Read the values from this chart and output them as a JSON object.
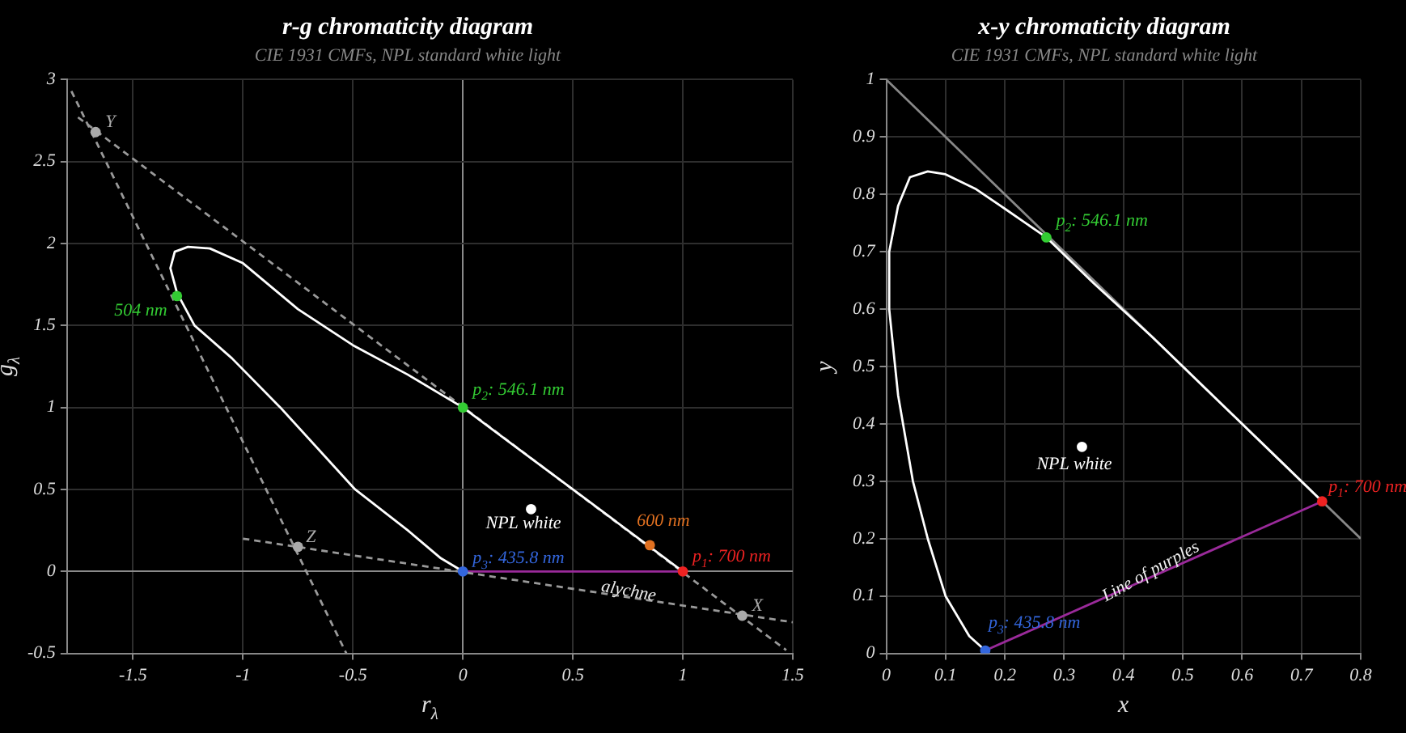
{
  "chart_data": [
    {
      "type": "line",
      "title": "r-g chromaticity diagram",
      "subtitle": "CIE 1931 CMFs, NPL standard white light",
      "xlabel": "r$_{λ}$",
      "ylabel": "g$_{λ}$",
      "xlim": [
        -1.8,
        1.5
      ],
      "ylim": [
        -0.5,
        3
      ],
      "xticks": [
        -1.5,
        -1,
        -0.5,
        0,
        0.5,
        1,
        1.5
      ],
      "yticks": [
        -0.5,
        0,
        0.5,
        1,
        1.5,
        2,
        2.5,
        3
      ],
      "grid": true,
      "legend": false,
      "series": [
        {
          "type": "line",
          "color": "#ffffff",
          "line_style": "solid",
          "x": [
            0,
            -0.1,
            -0.25,
            -0.49,
            -0.83,
            -1.05,
            -1.22,
            -1.3,
            -1.33,
            -1.31,
            -1.25,
            -1.15,
            -1,
            -0.75,
            -0.5,
            -0.25,
            0,
            0.25,
            0.5,
            0.75,
            1
          ],
          "values": [
            0,
            0.08,
            0.25,
            0.5,
            1,
            1.3,
            1.5,
            1.7,
            1.85,
            1.95,
            1.98,
            1.97,
            1.88,
            1.6,
            1.38,
            1.2,
            1,
            0.75,
            0.5,
            0.25,
            0
          ]
        },
        {
          "type": "line",
          "color": "#999999",
          "line_style": "dashed",
          "x": [
            -1.75,
            1.47
          ],
          "values": [
            2.77,
            -0.48
          ]
        },
        {
          "type": "line",
          "color": "#999999",
          "line_style": "dashed",
          "x": [
            -1.78,
            -0.53
          ],
          "values": [
            2.93,
            -0.5
          ]
        },
        {
          "type": "line",
          "color": "#999999",
          "line_style": "dashed",
          "x": [
            -1,
            1.5
          ],
          "values": [
            0.2,
            -0.31
          ]
        },
        {
          "type": "line",
          "color": "#9a2a9a",
          "line_style": "solid",
          "x": [
            0,
            1
          ],
          "values": [
            0,
            0
          ]
        },
        {
          "type": "scatter",
          "marker": "circle",
          "x": [
            -1.67,
            1.27,
            -0.75,
            -1.3,
            0,
            0,
            1,
            0.85,
            0.31
          ],
          "values": [
            2.68,
            -0.27,
            0.15,
            1.68,
            1,
            0,
            0,
            0.16,
            0.38
          ],
          "colors": [
            "#aaaaaa",
            "#aaaaaa",
            "#aaaaaa",
            "#33cc33",
            "#33cc33",
            "#3366dd",
            "#ee2222",
            "#e07020",
            "#ffffff"
          ]
        }
      ],
      "annotations": [
        {
          "text": "Y",
          "x": -1.67,
          "y": 2.68
        },
        {
          "text": "X",
          "x": 1.27,
          "y": -0.27
        },
        {
          "text": "Z",
          "x": -0.75,
          "y": 0.15
        },
        {
          "text": "504 nm",
          "x": -1.3,
          "y": 1.68
        },
        {
          "text": "p$_{2}$: 546.1 nm",
          "x": 0,
          "y": 1
        },
        {
          "text": "p$_{3}$: 435.8 nm",
          "x": 0,
          "y": 0
        },
        {
          "text": "p$_{1}$: 700 nm",
          "x": 1,
          "y": 0
        },
        {
          "text": "600 nm",
          "x": 0.85,
          "y": 0.16
        },
        {
          "text": "NPL white",
          "x": 0.31,
          "y": 0.38
        },
        {
          "text": "alychne",
          "x": 0.75,
          "y": -0.15
        }
      ]
    },
    {
      "type": "line",
      "title": "x-y chromaticity diagram",
      "subtitle": "CIE 1931 CMFs, NPL standard white light",
      "xlabel": "x",
      "ylabel": "y",
      "xlim": [
        0,
        0.8
      ],
      "ylim": [
        0,
        1
      ],
      "xticks": [
        0,
        0.1,
        0.2,
        0.3,
        0.4,
        0.5,
        0.6,
        0.7,
        0.8
      ],
      "yticks": [
        0,
        0.1,
        0.2,
        0.3,
        0.4,
        0.5,
        0.6,
        0.7,
        0.8,
        0.9,
        1
      ],
      "grid": true,
      "legend": false,
      "series": [
        {
          "type": "line",
          "color": "#ffffff",
          "line_style": "solid",
          "x": [
            0.167,
            0.14,
            0.1,
            0.07,
            0.045,
            0.02,
            0.005,
            0.005,
            0.02,
            0.04,
            0.07,
            0.1,
            0.15,
            0.2,
            0.27,
            0.35,
            0.45,
            0.55,
            0.65,
            0.735
          ],
          "values": [
            0.005,
            0.03,
            0.1,
            0.2,
            0.3,
            0.45,
            0.6,
            0.7,
            0.78,
            0.83,
            0.84,
            0.835,
            0.81,
            0.775,
            0.725,
            0.645,
            0.55,
            0.45,
            0.35,
            0.265
          ]
        },
        {
          "type": "line",
          "color": "#888888",
          "line_style": "solid",
          "x": [
            0,
            0.8
          ],
          "values": [
            1,
            0.2
          ]
        },
        {
          "type": "line",
          "color": "#9a2a9a",
          "line_style": "solid",
          "x": [
            0.167,
            0.735
          ],
          "values": [
            0.005,
            0.265
          ]
        },
        {
          "type": "scatter",
          "marker": "circle",
          "x": [
            0.27,
            0.735,
            0.167,
            0.33
          ],
          "values": [
            0.725,
            0.265,
            0.005,
            0.36
          ],
          "colors": [
            "#33cc33",
            "#ee2222",
            "#3366dd",
            "#ffffff"
          ]
        }
      ],
      "annotations": [
        {
          "text": "p$_{2}$: 546.1 nm",
          "x": 0.27,
          "y": 0.725
        },
        {
          "text": "p$_{1}$: 700 nm",
          "x": 0.735,
          "y": 0.265
        },
        {
          "text": "p$_{3}$: 435.8 nm",
          "x": 0.167,
          "y": 0.005
        },
        {
          "text": "NPL white",
          "x": 0.33,
          "y": 0.36
        },
        {
          "text": "Line of purples",
          "x": 0.45,
          "y": 0.135
        }
      ]
    }
  ]
}
